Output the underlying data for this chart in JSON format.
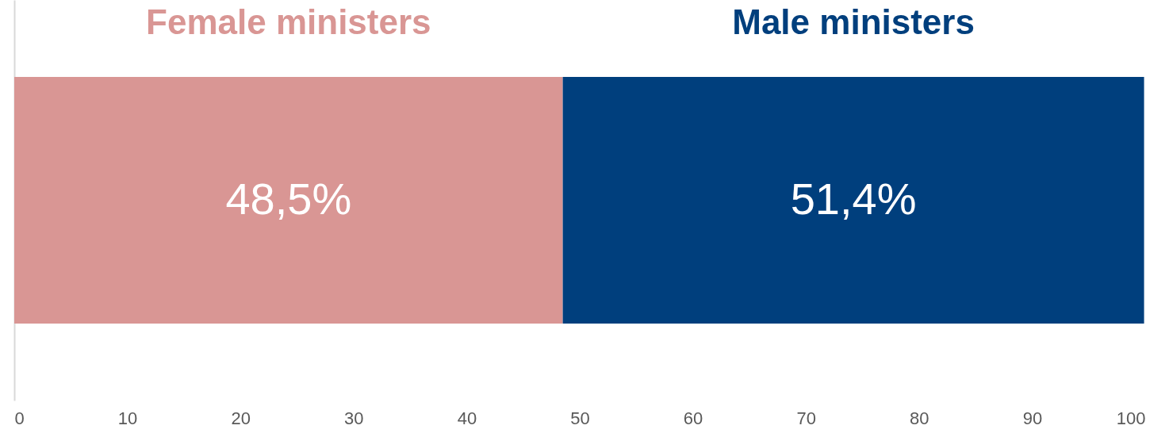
{
  "chart_data": {
    "type": "bar",
    "orientation": "horizontal",
    "stacked": true,
    "categories": [
      null
    ],
    "series": [
      {
        "name": "Female ministers",
        "color": "#d99694",
        "values": [
          48.5
        ],
        "value_labels": [
          "48,5%"
        ]
      },
      {
        "name": "Male ministers",
        "color": "#003f7d",
        "values": [
          51.4
        ],
        "value_labels": [
          "51,4%"
        ]
      }
    ],
    "xlim": [
      0,
      100
    ],
    "xticks": [
      0,
      10,
      20,
      30,
      40,
      50,
      60,
      70,
      80,
      90,
      100
    ],
    "grid": false,
    "legend": "top"
  }
}
